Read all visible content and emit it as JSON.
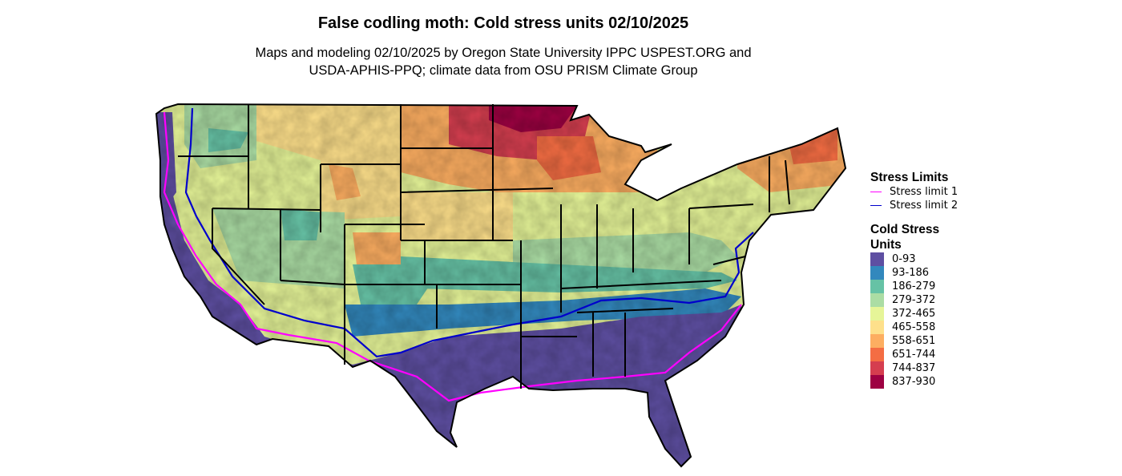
{
  "title": "False codling moth: Cold stress units 02/10/2025",
  "subtitle": {
    "line1": "Maps and modeling 02/10/2025 by Oregon State University IPPC USPEST.ORG and",
    "line2": "USDA-APHIS-PPQ; climate data from OSU PRISM Climate Group"
  },
  "legend": {
    "stress_title": "Stress Limits",
    "stress_limits": [
      {
        "label": "Stress limit 1",
        "color": "#ff00ff"
      },
      {
        "label": "Stress limit 2",
        "color": "#0000cc"
      }
    ],
    "units_title_line1": "Cold Stress",
    "units_title_line2": "Units",
    "classes": [
      {
        "label": "0-93",
        "color": "#5e4fa2"
      },
      {
        "label": "93-186",
        "color": "#3288bd"
      },
      {
        "label": "186-279",
        "color": "#66c2a5"
      },
      {
        "label": "279-372",
        "color": "#abdda4"
      },
      {
        "label": "372-465",
        "color": "#e6f598"
      },
      {
        "label": "465-558",
        "color": "#fee08b"
      },
      {
        "label": "558-651",
        "color": "#fdae61"
      },
      {
        "label": "651-744",
        "color": "#f46d43"
      },
      {
        "label": "744-837",
        "color": "#d53e4f"
      },
      {
        "label": "837-930",
        "color": "#9e0142"
      }
    ]
  }
}
